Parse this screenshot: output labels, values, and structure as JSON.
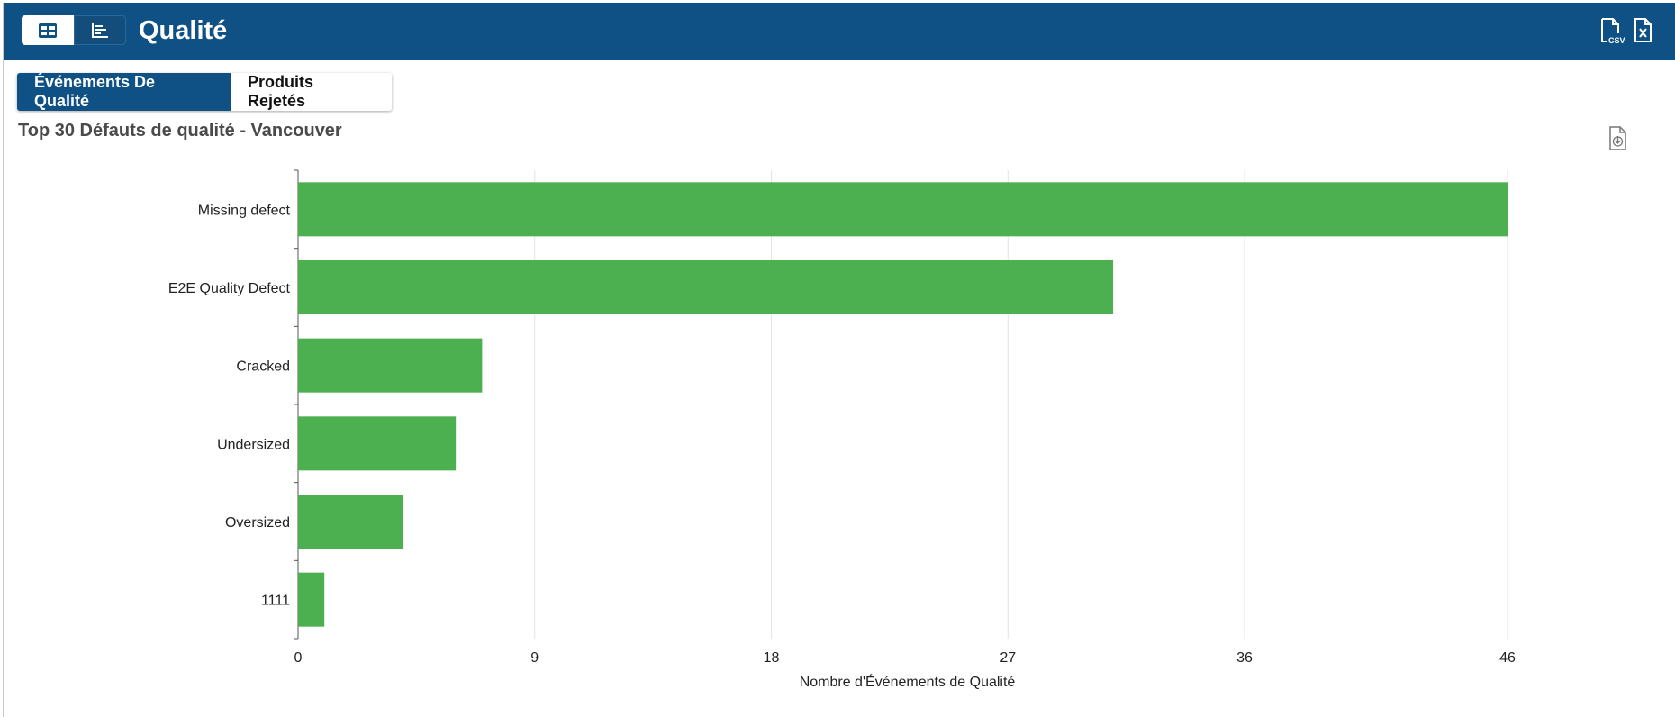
{
  "header": {
    "title": "Qualité",
    "view_grid_icon": "table-view-icon",
    "view_chart_icon": "bar-chart-view-icon",
    "export_csv_icon": "csv-file-icon",
    "export_excel_icon": "excel-file-icon"
  },
  "tabs": [
    {
      "label": "Événements De Qualité",
      "active": true
    },
    {
      "label": "Produits Rejetés",
      "active": false
    }
  ],
  "chart_header": {
    "title": "Top 30 Défauts de qualité - Vancouver",
    "download_icon": "download-file-icon"
  },
  "colors": {
    "header_bg": "#0f5184",
    "bar": "#4caf50",
    "grid": "#e3e3e3"
  },
  "chart_data": {
    "type": "bar",
    "orientation": "horizontal",
    "categories": [
      "Missing defect",
      "E2E Quality Defect",
      "Cracked",
      "Undersized",
      "Oversized",
      "1111"
    ],
    "values": [
      46,
      31,
      7,
      6,
      4,
      1
    ],
    "xlabel": "Nombre d'Événements de Qualité",
    "ylabel": "",
    "xlim": [
      0,
      46
    ],
    "xticks": [
      0,
      9,
      18,
      27,
      36,
      46
    ],
    "grid": true,
    "legend": "none"
  }
}
